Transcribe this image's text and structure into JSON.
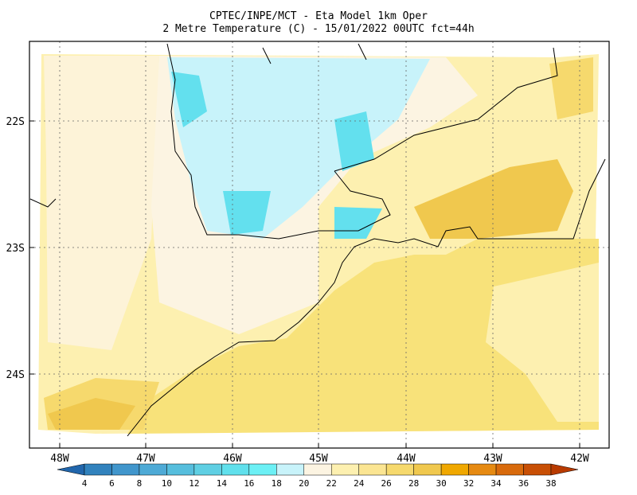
{
  "header": {
    "title": "CPTEC/INPE/MCT -  Eta Model 1km Oper",
    "subtitle": "2 Metre Temperature (C) - 15/01/2022 00UTC fct=44h"
  },
  "map": {
    "lat_labels": [
      "22S",
      "23S",
      "24S"
    ],
    "lon_labels": [
      "48W",
      "47W",
      "46W",
      "45W",
      "44W",
      "43W",
      "42W"
    ]
  },
  "colorbar": {
    "ticks": [
      4,
      6,
      8,
      10,
      12,
      14,
      16,
      18,
      20,
      22,
      24,
      26,
      28,
      30,
      32,
      34,
      36,
      38
    ],
    "colors": [
      "#2166ac",
      "#3182bd",
      "#4196cc",
      "#4eaad6",
      "#56bedd",
      "#5fcfe3",
      "#60e0ec",
      "#6cf0f5",
      "#c8f3fa",
      "#fcf4e2",
      "#fdf0b0",
      "#fbe592",
      "#f6d96d",
      "#f0c84e",
      "#f0a800",
      "#e68a12",
      "#d86a0c",
      "#c84f05",
      "#b83a00"
    ]
  }
}
